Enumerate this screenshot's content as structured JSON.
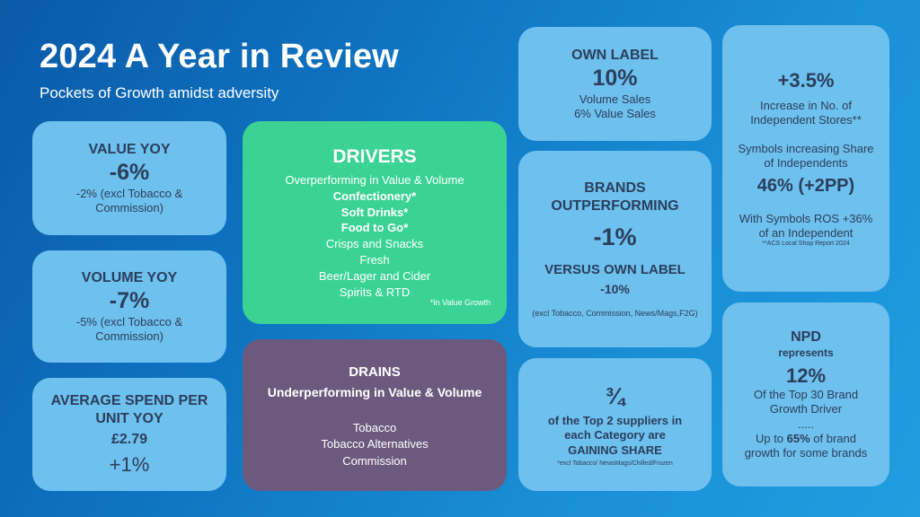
{
  "header": {
    "title": "2024 A Year in Review",
    "subtitle": "Pockets of Growth amidst adversity"
  },
  "value_yoy": {
    "heading": "VALUE YOY",
    "value": "-6%",
    "note_line1": "-2% (excl Tobacco &",
    "note_line2": "Commission)"
  },
  "volume_yoy": {
    "heading": "VOLUME YOY",
    "value": "-7%",
    "note_line1": "-5% (excl Tobacco &",
    "note_line2": "Commission)"
  },
  "avg_spend": {
    "heading_line1": "AVERAGE SPEND PER",
    "heading_line2": "UNIT YOY",
    "amount": "£2.79",
    "change": "+1%"
  },
  "drivers": {
    "title": "DRIVERS",
    "subtitle": "Overperforming in Value & Volume",
    "bold_items": [
      "Confectionery*",
      "Soft Drinks*",
      "Food to Go*"
    ],
    "items": [
      "Crisps and Snacks",
      "Fresh",
      "Beer/Lager and Cider",
      "Spirits & RTD"
    ],
    "note": "*In Value Growth"
  },
  "drains": {
    "title": "DRAINS",
    "subtitle": "Underperforming in Value & Volume",
    "items": [
      "Tobacco",
      "Tobacco Alternatives",
      "Commission"
    ]
  },
  "own_label": {
    "heading": "OWN LABEL",
    "value": "10%",
    "line1": "Volume Sales",
    "line2": "6% Value Sales"
  },
  "brands": {
    "heading_line1": "BRANDS",
    "heading_line2": "OUTPERFORMING",
    "value": "-1%",
    "versus": "VERSUS  OWN LABEL",
    "versus_value": "-10%",
    "note": "(excl Tobacco, Commission, News/Mags,F2G)"
  },
  "top2": {
    "value": "¾",
    "line1": "of the Top 2 suppliers in",
    "line2": "each Category are",
    "line3": "GAINING SHARE",
    "note": "*excl Tobacco/ NewsMags/Chilled/Frozen"
  },
  "independents": {
    "value": "+3.5%",
    "line1": "Increase in No. of",
    "line2": "Independent Stores**",
    "sym_line1": "Symbols increasing Share",
    "sym_line2": "of Independents",
    "share": "46% (+2PP)",
    "ros_line1": "With Symbols ROS +36%",
    "ros_line2": "of an Independent",
    "source": "**ACS Local Shop Report 2024"
  },
  "npd": {
    "heading": "NPD",
    "represents": "represents",
    "value": "12%",
    "line1": "Of the Top 30 Brand",
    "line2": "Growth Driver",
    "dots": ".....",
    "line3_pre": "Up to ",
    "line3_bold": "65%",
    "line3_post": " of brand",
    "line4": "growth for some brands"
  },
  "colors": {
    "background": "#0e74c2",
    "light_card": "#6ec0ee",
    "drivers_card": "#3ad394",
    "drains_card": "#6b5a7e"
  }
}
